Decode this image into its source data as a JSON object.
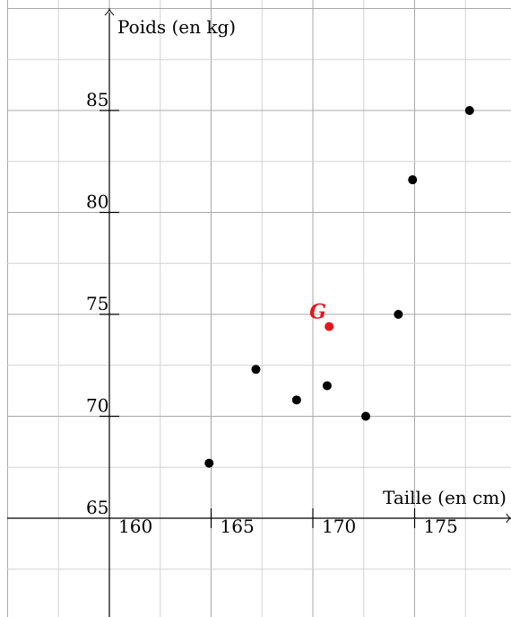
{
  "chart_data": {
    "type": "scatter",
    "xlabel": "Taille (en cm)",
    "ylabel": "Poids (en kg)",
    "x_ticks": [
      "160",
      "165",
      "170",
      "175"
    ],
    "y_ticks": [
      "65",
      "70",
      "75",
      "80",
      "85"
    ],
    "xlim": [
      155,
      177.5
    ],
    "ylim": [
      60,
      90
    ],
    "grid": true,
    "series": [
      {
        "points": [
          {
            "x": 164.9,
            "y": 67.7
          },
          {
            "x": 167.2,
            "y": 72.3
          },
          {
            "x": 169.2,
            "y": 70.8
          },
          {
            "x": 170.7,
            "y": 71.5
          },
          {
            "x": 172.6,
            "y": 70.0
          },
          {
            "x": 174.2,
            "y": 75.0
          },
          {
            "x": 174.9,
            "y": 81.6
          },
          {
            "x": 177.7,
            "y": 85.0
          }
        ],
        "color": "#000000"
      },
      {
        "name": "G",
        "points": [
          {
            "x": 170.8,
            "y": 74.4
          }
        ],
        "color": "#e8141b"
      }
    ]
  }
}
